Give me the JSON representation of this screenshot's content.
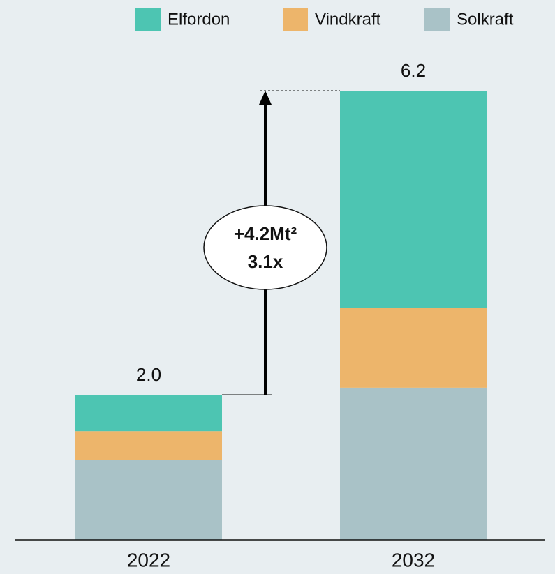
{
  "chart_data": {
    "type": "stacked_bar",
    "categories": [
      "2022",
      "2032"
    ],
    "series": [
      {
        "name": "Elfordon",
        "color": "#4dc5b2",
        "values": [
          0.5,
          3.0
        ]
      },
      {
        "name": "Vindkraft",
        "color": "#edb56b",
        "values": [
          0.4,
          1.1
        ]
      },
      {
        "name": "Solkraft",
        "color": "#a9c2c7",
        "values": [
          1.1,
          2.1
        ]
      }
    ],
    "totals": [
      2.0,
      6.2
    ],
    "total_labels": [
      "2.0",
      "6.2"
    ],
    "annotation": [
      "+4.2Mt²",
      "3.1x"
    ],
    "legend": "top-right"
  }
}
